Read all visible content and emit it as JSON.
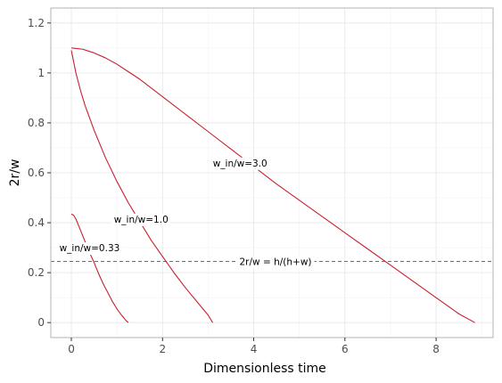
{
  "chart_data": {
    "type": "line",
    "title": "",
    "xlabel": "Dimensionless time",
    "ylabel": "2r/w",
    "xlim": [
      -0.45,
      9.25
    ],
    "ylim": [
      -0.06,
      1.26
    ],
    "x_ticks": [
      0,
      2,
      4,
      6,
      8
    ],
    "x_tick_labels": [
      "0",
      "2",
      "4",
      "6",
      "8"
    ],
    "y_ticks": [
      0,
      0.2,
      0.4,
      0.6,
      0.8,
      1.0,
      1.2
    ],
    "y_tick_labels": [
      "0",
      "0.2",
      "0.4",
      "0.6",
      "0.8",
      "1",
      "1.2"
    ],
    "grid": true,
    "line_color": "#c8202f",
    "reference_color": "#6e6e6e",
    "series": [
      {
        "x": [
          0.0,
          0.05,
          0.1,
          0.2,
          0.3,
          0.4,
          0.5,
          0.6,
          0.7,
          0.8,
          0.9,
          1.0,
          1.1,
          1.2,
          1.25
        ],
        "y": [
          0.435,
          0.43,
          0.415,
          0.37,
          0.325,
          0.28,
          0.24,
          0.195,
          0.155,
          0.12,
          0.085,
          0.055,
          0.03,
          0.008,
          0.0
        ]
      },
      {
        "x": [
          0.0,
          0.1,
          0.2,
          0.3,
          0.5,
          0.75,
          1.0,
          1.25,
          1.5,
          1.75,
          2.0,
          2.25,
          2.5,
          2.75,
          3.0,
          3.1
        ],
        "y": [
          1.09,
          1.0,
          0.93,
          0.87,
          0.77,
          0.66,
          0.565,
          0.48,
          0.405,
          0.33,
          0.265,
          0.2,
          0.14,
          0.085,
          0.03,
          0.0
        ]
      },
      {
        "x": [
          0.0,
          0.25,
          0.5,
          0.75,
          1.0,
          1.25,
          1.5,
          2.0,
          2.5,
          3.0,
          3.5,
          4.0,
          4.5,
          5.0,
          5.5,
          6.0,
          6.5,
          7.0,
          7.5,
          8.0,
          8.5,
          8.85
        ],
        "y": [
          1.1,
          1.095,
          1.08,
          1.06,
          1.035,
          1.005,
          0.975,
          0.905,
          0.835,
          0.765,
          0.695,
          0.625,
          0.555,
          0.49,
          0.425,
          0.36,
          0.295,
          0.23,
          0.165,
          0.1,
          0.035,
          0.0
        ]
      }
    ],
    "reference_line": {
      "y": 0.245,
      "label": "2r/w = h/(h+w)"
    },
    "annotations": [
      {
        "text": "w_in/w=0.33",
        "x": 0.4,
        "y": 0.3
      },
      {
        "text": "w_in/w=1.0",
        "x": 1.53,
        "y": 0.415
      },
      {
        "text": "w_in/w=3.0",
        "x": 3.7,
        "y": 0.64
      }
    ]
  }
}
